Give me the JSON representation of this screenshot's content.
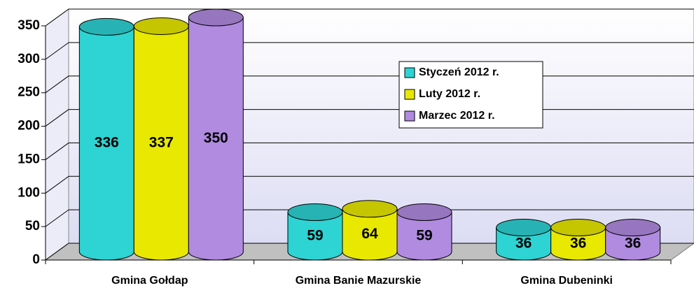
{
  "chart_data": {
    "type": "bar3d",
    "categories": [
      "Gmina Gołdap",
      "Gmina Banie Mazurskie",
      "Gmina Dubeninki"
    ],
    "series": [
      {
        "name": "Styczeń 2012 r.",
        "color": "#2ed3d3",
        "values": [
          336,
          59,
          36
        ]
      },
      {
        "name": "Luty 2012 r.",
        "color": "#e8e800",
        "values": [
          337,
          64,
          36
        ]
      },
      {
        "name": "Marzec 2012 r.",
        "color": "#b08be0",
        "values": [
          350,
          59,
          36
        ]
      }
    ],
    "ylim": [
      0,
      350
    ],
    "yticks": [
      0,
      50,
      100,
      150,
      200,
      250,
      300,
      350
    ],
    "grid": true
  }
}
